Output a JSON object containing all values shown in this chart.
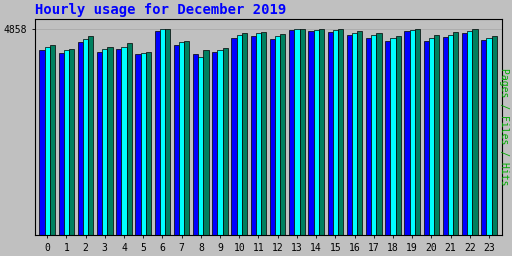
{
  "title": "Hourly usage for December 2019",
  "ylabel": "Pages / Files / Hits",
  "hours": [
    0,
    1,
    2,
    3,
    4,
    5,
    6,
    7,
    8,
    9,
    10,
    11,
    12,
    13,
    14,
    15,
    16,
    17,
    18,
    19,
    20,
    21,
    22,
    23
  ],
  "ytick_label": "4858",
  "ytick_value": 4858,
  "pages": [
    4350,
    4280,
    4560,
    4320,
    4380,
    4270,
    4820,
    4480,
    4260,
    4310,
    4650,
    4700,
    4620,
    4830,
    4800,
    4780,
    4710,
    4650,
    4580,
    4820,
    4580,
    4660,
    4760,
    4600
  ],
  "files": [
    4430,
    4350,
    4630,
    4380,
    4420,
    4300,
    4858,
    4540,
    4200,
    4370,
    4720,
    4760,
    4690,
    4858,
    4840,
    4830,
    4760,
    4720,
    4640,
    4840,
    4640,
    4720,
    4820,
    4650
  ],
  "hits": [
    4480,
    4380,
    4680,
    4420,
    4530,
    4310,
    4858,
    4580,
    4350,
    4400,
    4770,
    4790,
    4740,
    4858,
    4858,
    4858,
    4810,
    4770,
    4700,
    4858,
    4720,
    4790,
    4858,
    4700
  ],
  "color_pages": "#0000ff",
  "color_files": "#00ffff",
  "color_hits": "#008060",
  "background_color": "#c0c0c0",
  "plot_bg_color": "#c0c0c0",
  "title_color": "#0000ff",
  "ylabel_color": "#00aa00",
  "title_fontsize": 10,
  "bar_width": 0.27,
  "ylim_min": 0,
  "ylim_max": 5100
}
